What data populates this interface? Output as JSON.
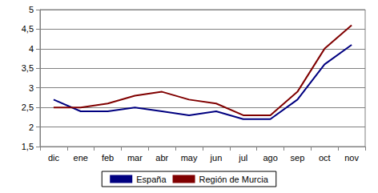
{
  "chart_data": {
    "type": "line",
    "categories": [
      "dic",
      "ene",
      "feb",
      "mar",
      "abr",
      "may",
      "jun",
      "jul",
      "ago",
      "sep",
      "oct",
      "nov"
    ],
    "series": [
      {
        "name": "España",
        "color": "#000080",
        "values": [
          2.7,
          2.4,
          2.4,
          2.5,
          2.4,
          2.3,
          2.4,
          2.2,
          2.2,
          2.7,
          3.6,
          4.1
        ]
      },
      {
        "name": "Región de Murcia",
        "color": "#800000",
        "values": [
          2.5,
          2.5,
          2.6,
          2.8,
          2.9,
          2.7,
          2.6,
          2.3,
          2.3,
          2.9,
          4.0,
          4.6
        ]
      }
    ],
    "ylim": [
      1.5,
      5
    ],
    "yticks": [
      {
        "value": 1.5,
        "label": "1,5"
      },
      2,
      {
        "value": 2.5,
        "label": "2,5"
      },
      3,
      {
        "value": 3.5,
        "label": "3,5"
      },
      4,
      {
        "value": 4.5,
        "label": "4,5"
      },
      5
    ],
    "grid": true,
    "legend": "bottom"
  }
}
